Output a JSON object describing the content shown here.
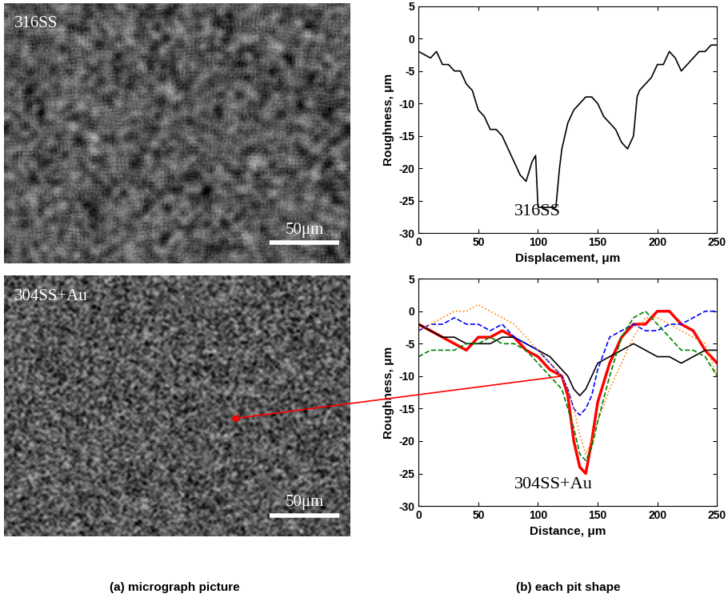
{
  "chart_data": [
    {
      "type": "line",
      "label": "316SS",
      "x_label": "Displacement, μm",
      "y_label": "Roughness, μm",
      "xlim": [
        0,
        250
      ],
      "xticks": [
        0,
        50,
        100,
        150,
        200,
        250
      ],
      "ylim": [
        -30,
        5
      ],
      "yticks": [
        -30,
        -25,
        -20,
        -15,
        -10,
        -5,
        0,
        5
      ],
      "grid": false,
      "x": [
        0,
        10,
        15,
        20,
        25,
        30,
        35,
        40,
        45,
        50,
        55,
        60,
        65,
        70,
        75,
        80,
        85,
        90,
        95,
        98,
        100,
        105,
        110,
        115,
        118,
        120,
        125,
        130,
        135,
        140,
        145,
        150,
        155,
        160,
        165,
        170,
        175,
        180,
        183,
        185,
        190,
        195,
        200,
        205,
        210,
        215,
        220,
        225,
        230,
        235,
        240,
        245,
        250
      ],
      "series": [
        {
          "color": "#000000",
          "line_style": "solid",
          "values": [
            -2,
            -3,
            -2,
            -4,
            -4,
            -5,
            -5,
            -7,
            -8,
            -11,
            -12,
            -14,
            -14,
            -15,
            -17,
            -19,
            -21,
            -22,
            -19,
            -18,
            -26,
            -26,
            -26,
            -26,
            -20,
            -17,
            -13,
            -11,
            -10,
            -9,
            -9,
            -10,
            -12,
            -13,
            -14,
            -16,
            -17,
            -15,
            -9,
            -8,
            -7,
            -6,
            -4,
            -4,
            -2,
            -3,
            -5,
            -4,
            -3,
            -2,
            -2,
            -1,
            -1
          ]
        }
      ]
    },
    {
      "type": "line",
      "label": "304SS+Au",
      "x_label": "Distance, μm",
      "y_label": "Roughness, μm",
      "xlim": [
        0,
        250
      ],
      "xticks": [
        0,
        50,
        100,
        150,
        200,
        250
      ],
      "ylim": [
        -30,
        5
      ],
      "yticks": [
        -30,
        -25,
        -20,
        -15,
        -10,
        -5,
        0,
        5
      ],
      "grid": false,
      "x": [
        0,
        10,
        20,
        30,
        40,
        50,
        60,
        70,
        80,
        90,
        100,
        110,
        120,
        125,
        130,
        135,
        140,
        145,
        150,
        160,
        170,
        180,
        190,
        200,
        210,
        220,
        230,
        240,
        250
      ],
      "series": [
        {
          "color": "#ff0000",
          "line_style": "solid",
          "values": [
            -2,
            -3,
            -4,
            -5,
            -6,
            -4,
            -4,
            -3,
            -4,
            -6,
            -7,
            -9,
            -10,
            -13,
            -20,
            -24,
            -25,
            -20,
            -14,
            -8,
            -4,
            -2,
            -2,
            0,
            0,
            -2,
            -3,
            -6,
            -8
          ]
        },
        {
          "color": "#000000",
          "line_style": "solid",
          "values": [
            -2,
            -3,
            -4,
            -4,
            -5,
            -5,
            -5,
            -4,
            -4,
            -5,
            -6,
            -7,
            -9,
            -10,
            -12,
            -13,
            -12,
            -10,
            -8,
            -7,
            -6,
            -5,
            -6,
            -7,
            -7,
            -8,
            -7,
            -6,
            -6
          ]
        },
        {
          "color": "#0000ff",
          "line_style": "dashed",
          "values": [
            -3,
            -2,
            -2,
            -1,
            -2,
            -2,
            -3,
            -2,
            -4,
            -5,
            -6,
            -8,
            -10,
            -12,
            -15,
            -16,
            -15,
            -13,
            -9,
            -4,
            -3,
            -2,
            -3,
            -3,
            -2,
            -2,
            -1,
            0,
            0
          ]
        },
        {
          "color": "#ff8000",
          "line_style": "dotted",
          "values": [
            -3,
            -2,
            -1,
            0,
            0,
            1,
            0,
            -1,
            -2,
            -4,
            -6,
            -8,
            -10,
            -12,
            -15,
            -19,
            -22,
            -20,
            -17,
            -12,
            -8,
            -4,
            -1,
            -1,
            -2,
            -3,
            -4,
            -5,
            -10
          ]
        },
        {
          "color": "#008000",
          "line_style": "dashed",
          "values": [
            -7,
            -6,
            -6,
            -6,
            -5,
            -5,
            -4,
            -5,
            -5,
            -6,
            -8,
            -10,
            -12,
            -15,
            -18,
            -22,
            -23,
            -21,
            -17,
            -10,
            -4,
            -1,
            0,
            -2,
            -4,
            -6,
            -6,
            -7,
            -10
          ]
        }
      ]
    }
  ],
  "micrographs": [
    {
      "label": "316SS",
      "scale_bar": "50μm"
    },
    {
      "label": "304SS+Au",
      "scale_bar": "50μm"
    }
  ],
  "captions": [
    "(a) micrograph picture",
    "(b) each pit shape"
  ]
}
